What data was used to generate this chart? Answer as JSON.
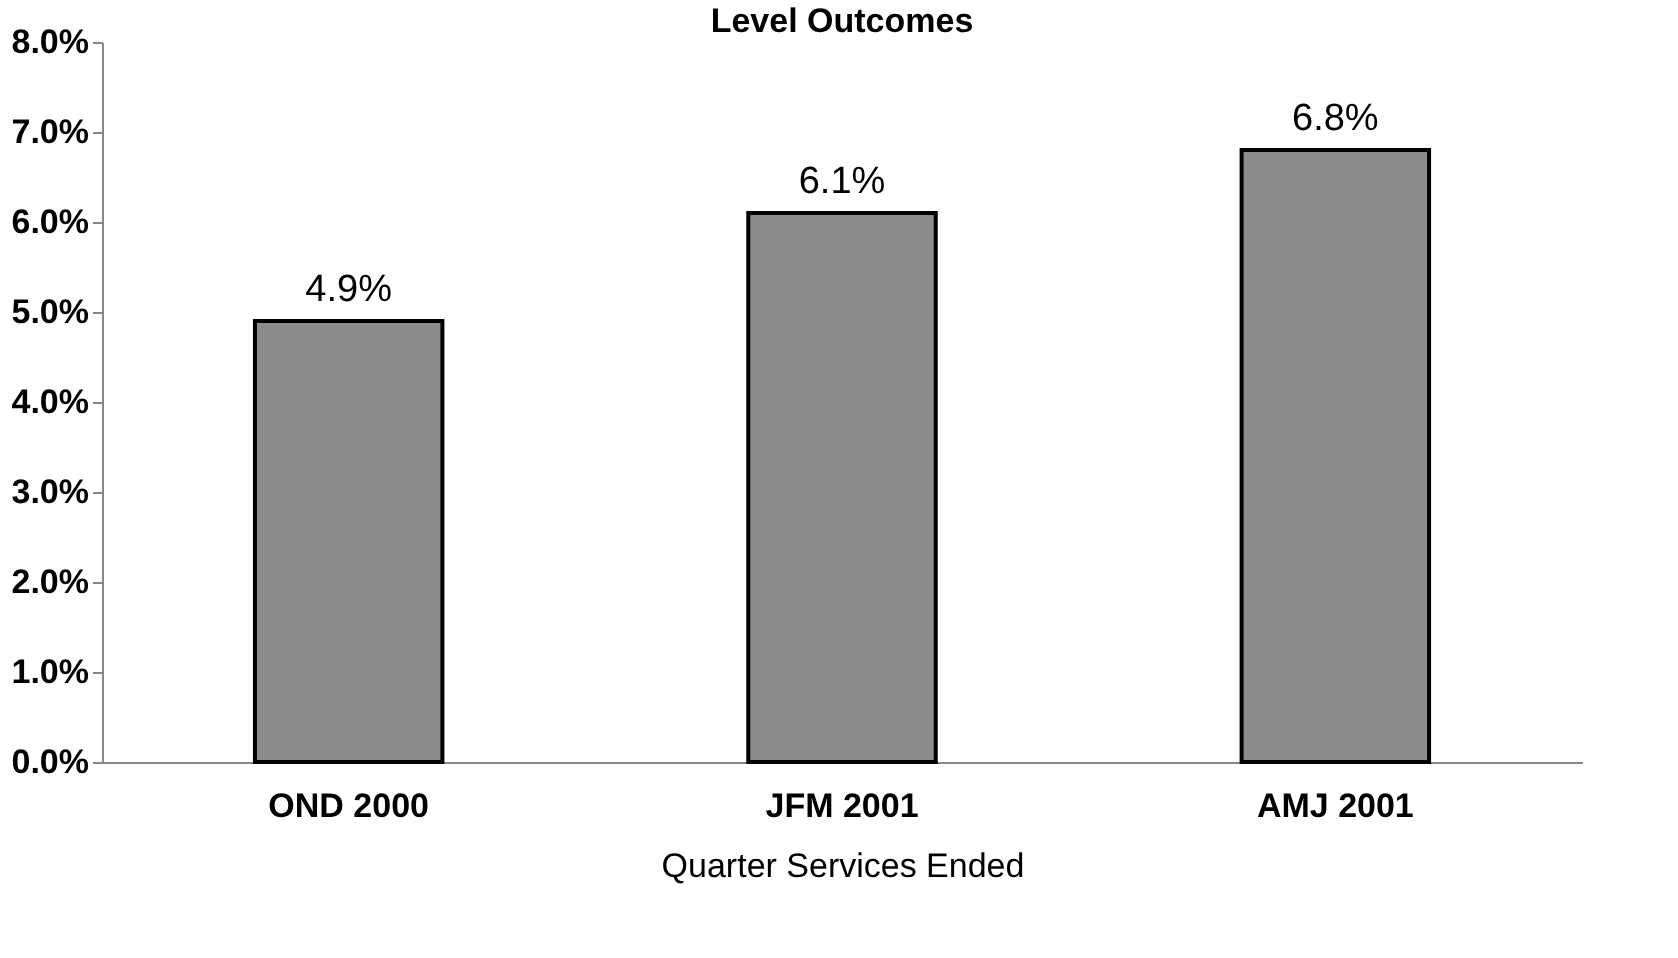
{
  "chart_data": {
    "type": "bar",
    "title": "Level Outcomes",
    "xlabel": "Quarter Services Ended",
    "categories": [
      "OND 2000",
      "JFM 2001",
      "AMJ 2001"
    ],
    "values": [
      4.9,
      6.1,
      6.8
    ],
    "color": "#8c8c8c",
    "value_labels": [
      "4.9%",
      "6.1%",
      "6.8%"
    ],
    "ylim": [
      0,
      8
    ],
    "yticks": [
      {
        "value": 0,
        "label": "0.0%"
      },
      {
        "value": 1,
        "label": "1.0%"
      },
      {
        "value": 2,
        "label": "2.0%"
      },
      {
        "value": 3,
        "label": "3.0%"
      },
      {
        "value": 4,
        "label": "4.0%"
      },
      {
        "value": 5,
        "label": "5.0%"
      },
      {
        "value": 6,
        "label": "6.0%"
      },
      {
        "value": 7,
        "label": "7.0%"
      },
      {
        "value": 8,
        "label": "8.0%"
      }
    ],
    "grid": false
  }
}
